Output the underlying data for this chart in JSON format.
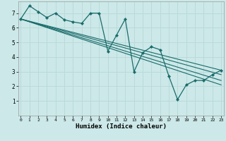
{
  "xlabel": "Humidex (Indice chaleur)",
  "background_color": "#cce8e8",
  "grid_color_minor": "#b8d8d8",
  "grid_color_major": "#9fbfbf",
  "line_color": "#1a6b6b",
  "xlim": [
    -0.3,
    23.3
  ],
  "ylim": [
    0,
    7.8
  ],
  "xticks": [
    0,
    1,
    2,
    3,
    4,
    5,
    6,
    7,
    8,
    9,
    10,
    11,
    12,
    13,
    14,
    15,
    16,
    17,
    18,
    19,
    20,
    21,
    22,
    23
  ],
  "yticks": [
    1,
    2,
    3,
    4,
    5,
    6,
    7
  ],
  "series": [
    [
      0,
      6.6
    ],
    [
      1,
      7.5
    ],
    [
      2,
      7.1
    ],
    [
      3,
      6.7
    ],
    [
      4,
      7.0
    ],
    [
      5,
      6.55
    ],
    [
      6,
      6.4
    ],
    [
      7,
      6.3
    ],
    [
      8,
      7.0
    ],
    [
      9,
      7.0
    ],
    [
      10,
      4.4
    ],
    [
      11,
      5.5
    ],
    [
      12,
      6.6
    ],
    [
      13,
      3.0
    ],
    [
      14,
      4.3
    ],
    [
      15,
      4.7
    ],
    [
      16,
      4.5
    ],
    [
      17,
      2.7
    ],
    [
      18,
      1.1
    ],
    [
      19,
      2.1
    ],
    [
      20,
      2.4
    ],
    [
      21,
      2.4
    ],
    [
      22,
      2.8
    ],
    [
      23,
      3.1
    ]
  ],
  "trend_lines": [
    {
      "x": [
        0,
        23
      ],
      "y": [
        6.6,
        3.1
      ]
    },
    {
      "x": [
        0,
        23
      ],
      "y": [
        6.6,
        2.8
      ]
    },
    {
      "x": [
        0,
        23
      ],
      "y": [
        6.6,
        2.4
      ]
    },
    {
      "x": [
        0,
        23
      ],
      "y": [
        6.6,
        2.1
      ]
    }
  ]
}
